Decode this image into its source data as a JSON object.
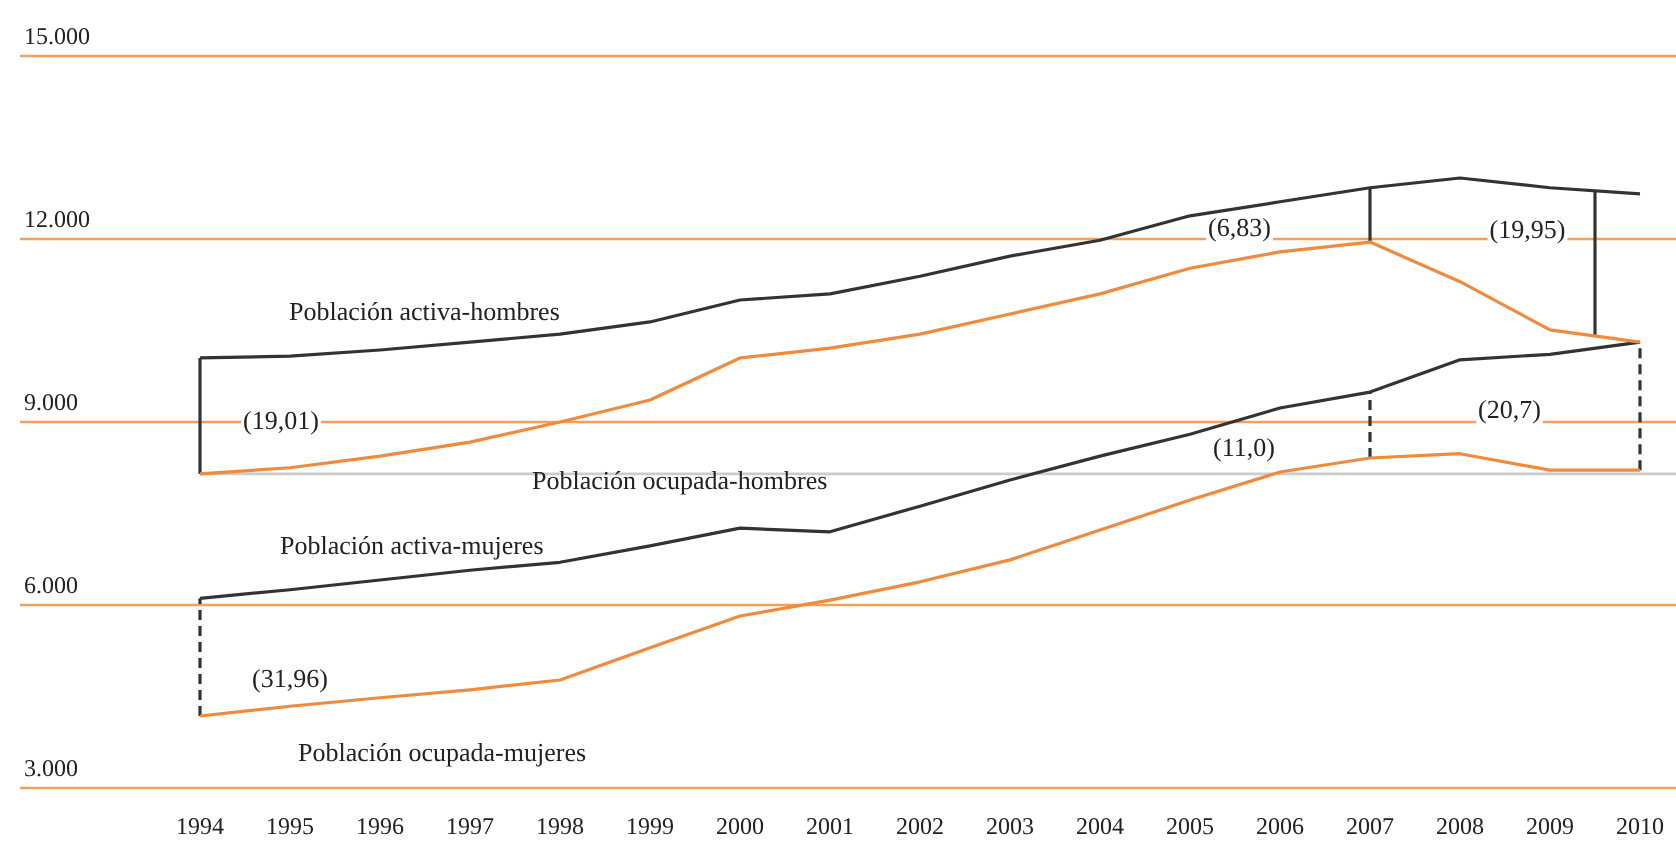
{
  "chart_data": {
    "type": "line",
    "x": [
      1994,
      1995,
      1996,
      1997,
      1998,
      1999,
      2000,
      2001,
      2002,
      2003,
      2004,
      2005,
      2006,
      2007,
      2008,
      2009,
      2010
    ],
    "xlim": [
      1992,
      2010.4
    ],
    "xticks": [
      1994,
      1995,
      1996,
      1997,
      1998,
      1999,
      2000,
      2001,
      2002,
      2003,
      2004,
      2005,
      2006,
      2007,
      2008,
      2009,
      2010
    ],
    "ylim": [
      3000,
      15000
    ],
    "yticks": [
      {
        "value": 3000,
        "label": "3.000"
      },
      {
        "value": 6000,
        "label": "6.000"
      },
      {
        "value": 9000,
        "label": "9.000"
      },
      {
        "value": 12000,
        "label": "12.000"
      },
      {
        "value": 15000,
        "label": "15.000"
      }
    ],
    "grid": "y",
    "marker": "none",
    "series": [
      {
        "name": "Población activa-hombres",
        "color": "#333333",
        "values": [
          10050,
          10080,
          10180,
          10310,
          10440,
          10640,
          11000,
          11100,
          11390,
          11720,
          11980,
          12380,
          12610,
          12840,
          13000,
          12840,
          12740
        ]
      },
      {
        "name": "Población ocupada-hombres",
        "color": "#f08a3c",
        "values": [
          8150,
          8250,
          8440,
          8670,
          9000,
          9360,
          10050,
          10210,
          10440,
          10770,
          11100,
          11520,
          11790,
          11950,
          11300,
          10510,
          10310
        ]
      },
      {
        "name": "Población activa-mujeres",
        "color": "#333333",
        "values": [
          6110,
          6250,
          6410,
          6570,
          6700,
          6970,
          7260,
          7200,
          7620,
          8050,
          8440,
          8800,
          9230,
          9490,
          10020,
          10110,
          10310
        ]
      },
      {
        "name": "Población ocupada-mujeres",
        "color": "#f08a3c",
        "values": [
          4180,
          4340,
          4480,
          4610,
          4770,
          5300,
          5820,
          6080,
          6380,
          6740,
          7230,
          7720,
          8180,
          8410,
          8480,
          8210,
          8210
        ]
      },
      {
        "color": "#333333",
        "x": [
          1994,
          1994
        ],
        "values": [
          8150,
          10050
        ]
      },
      {
        "color": "#333333",
        "x": [
          2007,
          2007
        ],
        "values": [
          11950,
          12840
        ]
      },
      {
        "color": "#333333",
        "x": [
          2009.5,
          2009.5
        ],
        "values": [
          10400,
          12790
        ]
      },
      {
        "color": "#333333",
        "x": [
          1994,
          1994
        ],
        "values": [
          4180,
          6110
        ],
        "line_style": "dashed"
      },
      {
        "color": "#333333",
        "x": [
          2007,
          2007
        ],
        "values": [
          8410,
          9490
        ],
        "line_style": "dashed"
      },
      {
        "color": "#333333",
        "x": [
          2010,
          2010
        ],
        "values": [
          8210,
          10310
        ],
        "line_style": "dashed"
      }
    ],
    "ref_lines": [
      {
        "axis": "y",
        "value": 8150,
        "color": "#cccccc"
      }
    ],
    "annotations": [
      "(19,01)",
      "(6,83)",
      "(19,95)",
      "(11,0)",
      "(20,7)",
      "(31,96)"
    ]
  }
}
